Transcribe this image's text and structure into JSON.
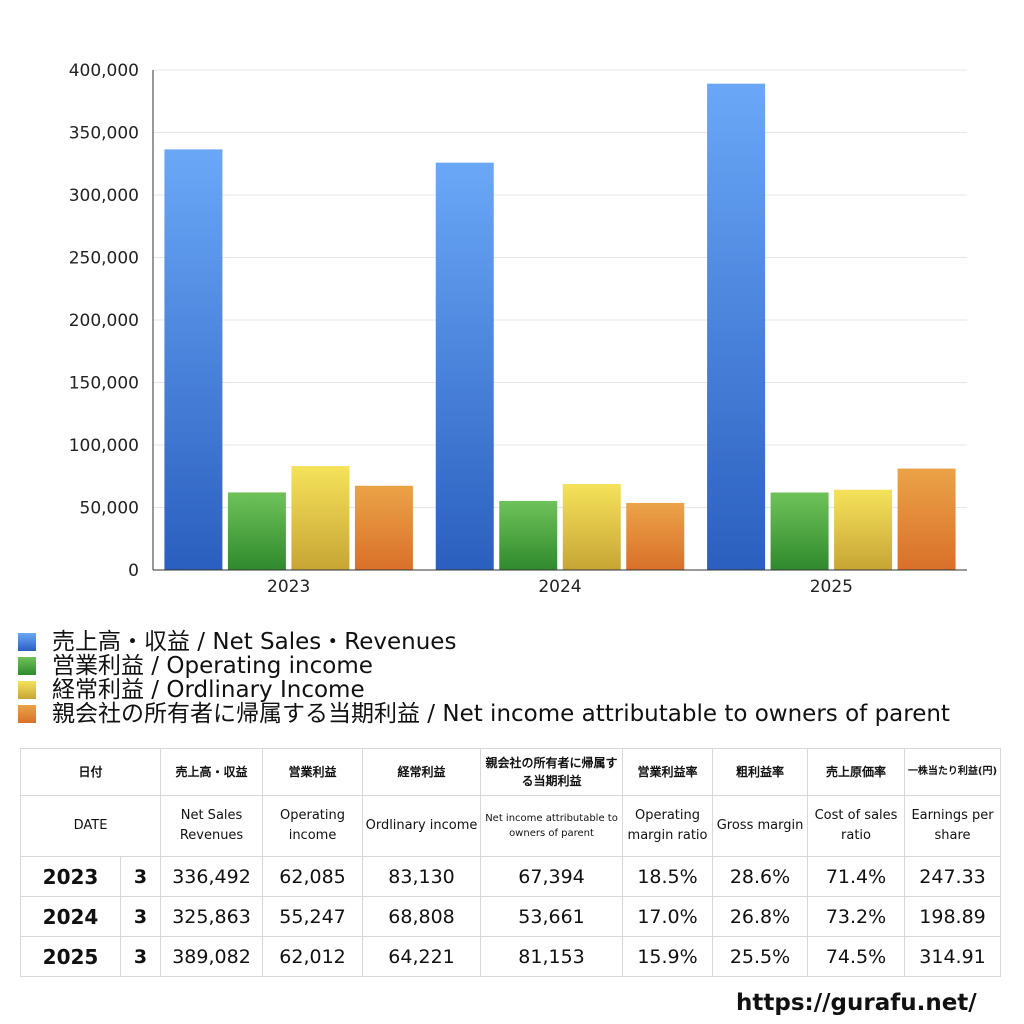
{
  "chart_data": {
    "type": "bar",
    "categories": [
      "2023",
      "2024",
      "2025"
    ],
    "series": [
      {
        "name": "売上高・収益 / Net Sales・Revenues",
        "values": [
          336492,
          325863,
          389082
        ],
        "color_top": "#6aa8f7",
        "color_bottom": "#2b5fbf"
      },
      {
        "name": "営業利益 / Operating income",
        "values": [
          62085,
          55247,
          62012
        ],
        "color_top": "#6fc25a",
        "color_bottom": "#2f8a2c"
      },
      {
        "name": "経常利益 / Ordlinary Income",
        "values": [
          83130,
          68808,
          64221
        ],
        "color_top": "#f5e25a",
        "color_bottom": "#c7a535"
      },
      {
        "name": "親会社の所有者に帰属する当期利益 / Net income attributable to owners of parent",
        "values": [
          67394,
          53661,
          81153
        ],
        "color_top": "#eba347",
        "color_bottom": "#d9702a"
      }
    ],
    "ylim": [
      0,
      400000
    ],
    "yticks": [
      "0",
      "50,000",
      "100,000",
      "150,000",
      "200,000",
      "250,000",
      "300,000",
      "350,000",
      "400,000"
    ],
    "grid": true,
    "legend": "bottom-left"
  },
  "table": {
    "headers_jp": [
      "日付",
      "売上高・収益",
      "営業利益",
      "経常利益",
      "親会社の所有者に帰属する当期利益",
      "営業利益率",
      "粗利益率",
      "売上原価率",
      "一株当たり利益(円)"
    ],
    "headers_en": [
      "DATE",
      "Net Sales Revenues",
      "Operating income",
      "Ordlinary income",
      "Net income attributable to owners of parent",
      "Operating margin ratio",
      "Gross margin",
      "Cost of sales ratio",
      "Earnings per share"
    ],
    "rows": [
      {
        "year": "2023",
        "month": "3",
        "sales": "336,492",
        "operating": "62,085",
        "ordinary": "83,130",
        "net": "67,394",
        "op_margin": "18.5%",
        "gross": "28.6%",
        "cost": "71.4%",
        "eps": "247.33"
      },
      {
        "year": "2024",
        "month": "3",
        "sales": "325,863",
        "operating": "55,247",
        "ordinary": "68,808",
        "net": "53,661",
        "op_margin": "17.0%",
        "gross": "26.8%",
        "cost": "73.2%",
        "eps": "198.89"
      },
      {
        "year": "2025",
        "month": "3",
        "sales": "389,082",
        "operating": "62,012",
        "ordinary": "64,221",
        "net": "81,153",
        "op_margin": "15.9%",
        "gross": "25.5%",
        "cost": "74.5%",
        "eps": "314.91"
      }
    ]
  },
  "watermark": "https://gurafu.net/"
}
